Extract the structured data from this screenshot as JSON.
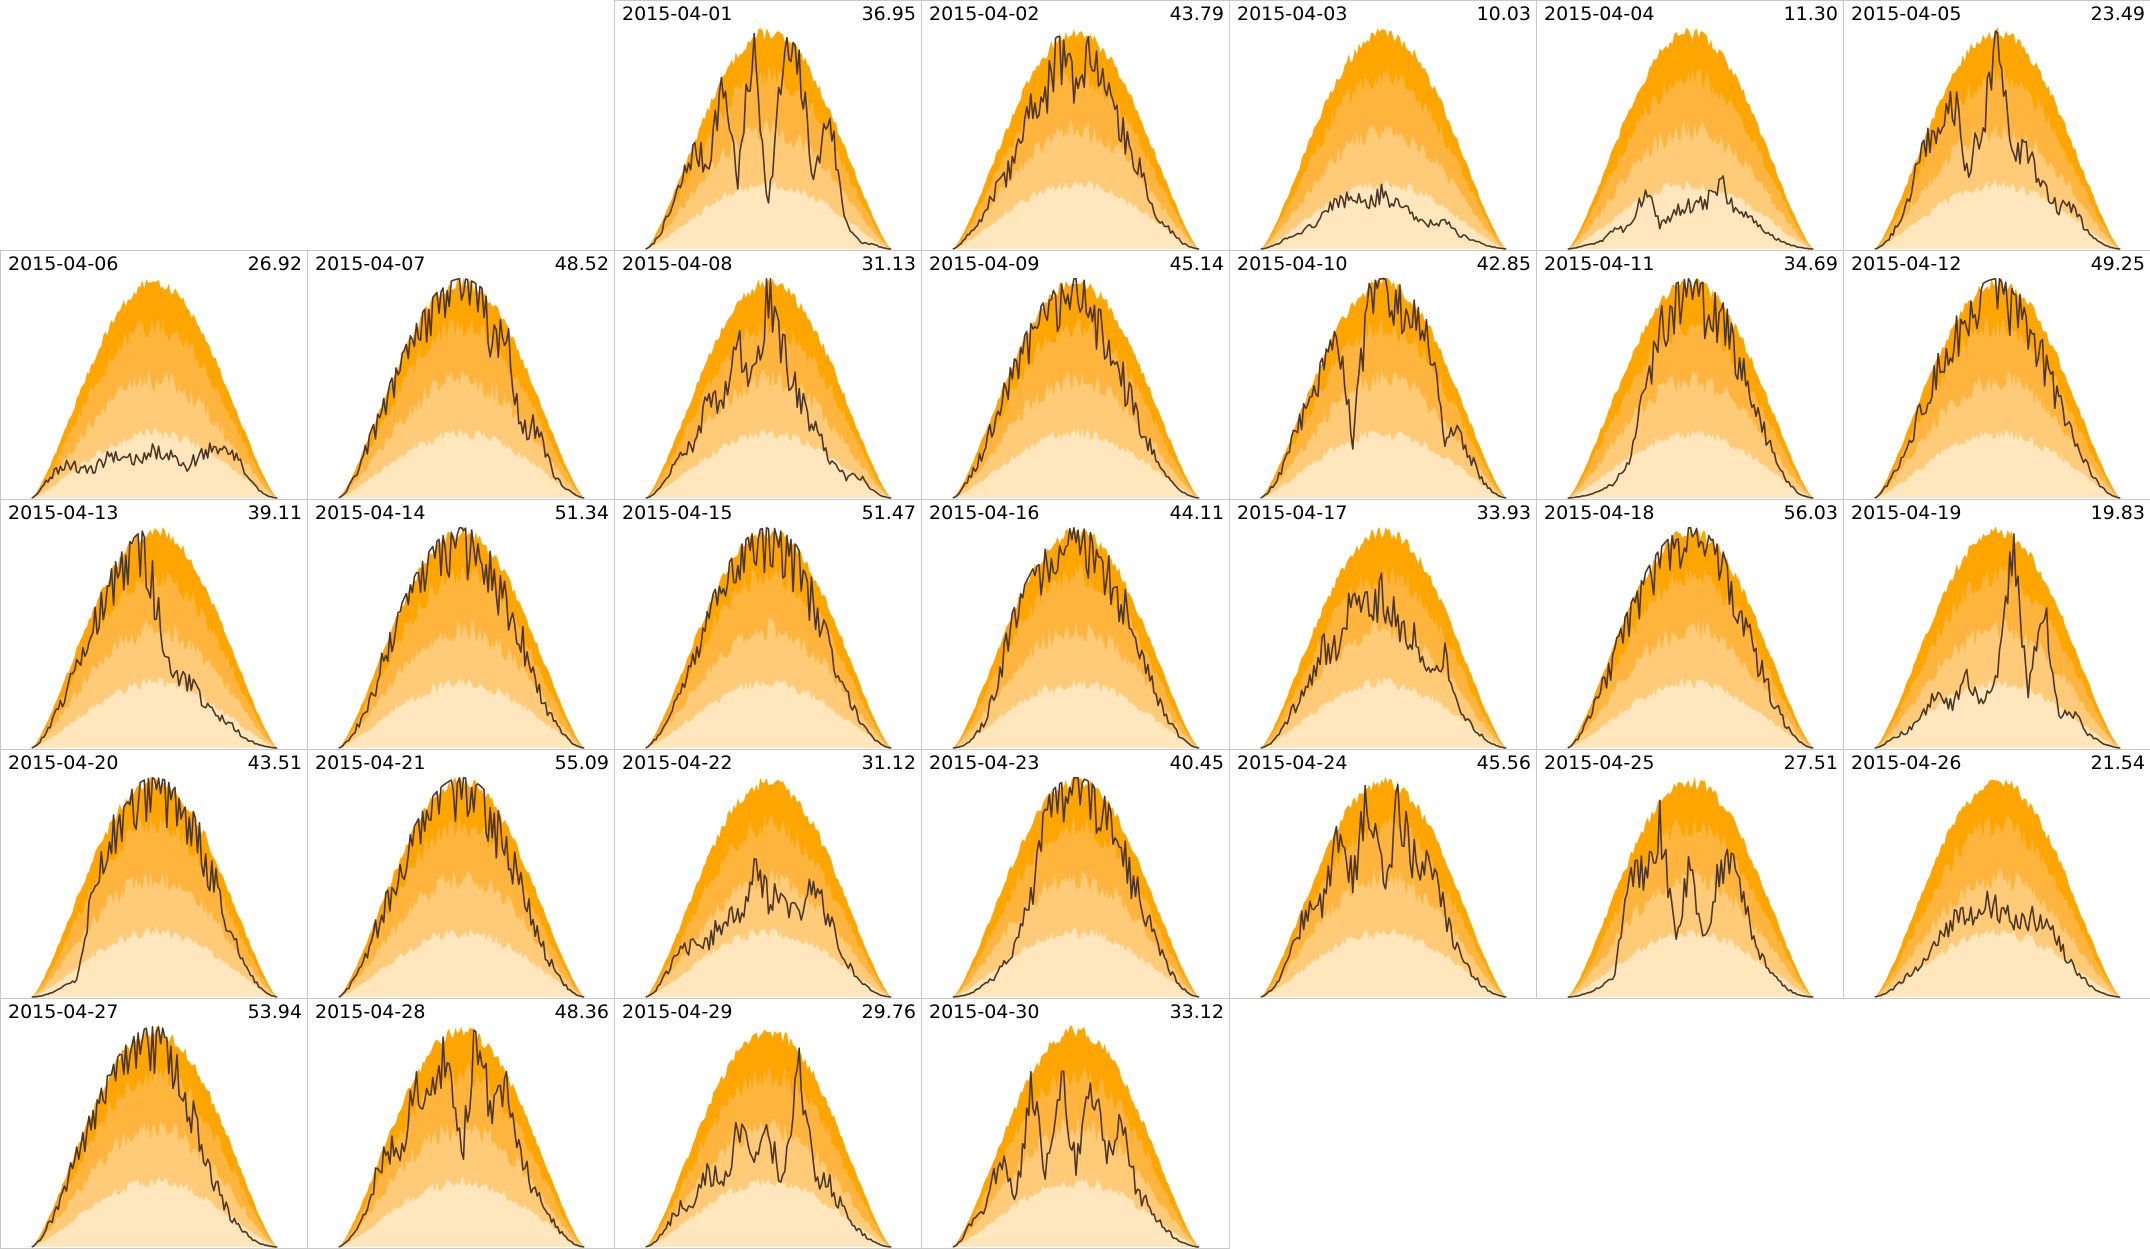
{
  "chart_data": {
    "type": "area",
    "layout": "calendar-grid",
    "columns": 7,
    "first_day_column": 2,
    "band_colors": [
      "#ffe6bd",
      "#ffcb78",
      "#ffb53d",
      "#ffa500"
    ],
    "line_color": "#4b3526",
    "days": [
      {
        "date": "2015-04-01",
        "total": "36.95",
        "profile": [
          0.4,
          0.7,
          0.85,
          0.95,
          0.6,
          1.0,
          0.35,
          0.98,
          0.2,
          0.9,
          0.95,
          0.4,
          1.0,
          0.3,
          0.1,
          0.15,
          0.05
        ]
      },
      {
        "date": "2015-04-02",
        "total": "43.79",
        "profile": [
          0.4,
          0.55,
          0.58,
          0.62,
          0.6,
          0.85,
          0.75,
          0.95,
          0.8,
          1.0,
          0.8,
          0.7,
          0.65,
          0.4,
          0.35,
          0.2,
          0.1
        ]
      },
      {
        "date": "2015-04-03",
        "total": "10.03",
        "profile": [
          0.12,
          0.18,
          0.22,
          0.2,
          0.24,
          0.28,
          0.25,
          0.22,
          0.26,
          0.2,
          0.18,
          0.15,
          0.2,
          0.14,
          0.12,
          0.1,
          0.08
        ]
      },
      {
        "date": "2015-04-04",
        "total": "11.30",
        "profile": [
          0.08,
          0.12,
          0.1,
          0.18,
          0.15,
          0.35,
          0.12,
          0.18,
          0.2,
          0.22,
          0.35,
          0.2,
          0.25,
          0.15,
          0.12,
          0.08,
          0.05
        ]
      },
      {
        "date": "2015-04-05",
        "total": "23.49",
        "profile": [
          0.25,
          0.45,
          0.7,
          0.98,
          0.9,
          0.95,
          0.4,
          0.6,
          0.9,
          0.45,
          0.5,
          0.35,
          0.3,
          0.4,
          0.25,
          0.15,
          0.08
        ]
      },
      {
        "date": "2015-04-06",
        "total": "26.92",
        "profile": [
          0.6,
          0.65,
          0.5,
          0.3,
          0.2,
          0.25,
          0.22,
          0.18,
          0.22,
          0.2,
          0.15,
          0.25,
          0.35,
          0.5,
          0.4,
          0.2,
          0.1
        ]
      },
      {
        "date": "2015-04-07",
        "total": "48.52",
        "profile": [
          0.6,
          0.8,
          0.9,
          0.95,
          0.97,
          1.0,
          0.98,
          1.0,
          0.96,
          0.92,
          0.85,
          0.9,
          0.5,
          0.7,
          0.4,
          0.3,
          0.15
        ]
      },
      {
        "date": "2015-04-08",
        "total": "31.13",
        "profile": [
          0.2,
          0.45,
          0.6,
          0.5,
          0.7,
          0.55,
          0.75,
          0.6,
          0.95,
          0.7,
          0.5,
          0.4,
          0.3,
          0.2,
          0.35,
          0.2,
          0.1
        ]
      },
      {
        "date": "2015-04-09",
        "total": "45.14",
        "profile": [
          0.5,
          0.7,
          0.8,
          0.9,
          0.95,
          0.97,
          0.98,
          0.97,
          0.95,
          0.9,
          0.75,
          0.7,
          0.6,
          0.45,
          0.3,
          0.2,
          0.1
        ]
      },
      {
        "date": "2015-04-10",
        "total": "42.85",
        "profile": [
          0.5,
          0.7,
          0.85,
          1.0,
          0.95,
          1.0,
          0.3,
          0.95,
          1.0,
          0.95,
          0.9,
          1.0,
          0.4,
          0.65,
          0.5,
          0.3,
          0.15
        ]
      },
      {
        "date": "2015-04-11",
        "total": "34.69",
        "profile": [
          0.05,
          0.08,
          0.1,
          0.15,
          0.3,
          0.6,
          0.85,
          0.95,
          1.0,
          0.9,
          0.95,
          0.85,
          0.8,
          0.6,
          0.4,
          0.2,
          0.1
        ]
      },
      {
        "date": "2015-04-12",
        "total": "49.25",
        "profile": [
          0.55,
          0.7,
          0.8,
          0.85,
          0.9,
          0.95,
          0.92,
          1.0,
          0.95,
          0.9,
          0.88,
          0.8,
          0.7,
          0.6,
          0.45,
          0.3,
          0.15
        ]
      },
      {
        "date": "2015-04-13",
        "total": "39.11",
        "profile": [
          0.45,
          0.65,
          0.8,
          0.85,
          0.9,
          0.95,
          0.98,
          1.0,
          0.7,
          0.4,
          0.35,
          0.3,
          0.25,
          0.22,
          0.15,
          0.1,
          0.06
        ]
      },
      {
        "date": "2015-04-14",
        "total": "51.34",
        "profile": [
          0.5,
          0.65,
          0.75,
          0.9,
          1.0,
          0.98,
          1.0,
          0.97,
          0.95,
          0.92,
          0.88,
          0.82,
          0.75,
          0.6,
          0.45,
          0.3,
          0.15
        ]
      },
      {
        "date": "2015-04-15",
        "total": "51.47",
        "profile": [
          0.55,
          0.7,
          0.82,
          0.9,
          0.95,
          0.98,
          1.0,
          0.99,
          0.97,
          0.94,
          0.9,
          0.82,
          0.72,
          0.58,
          0.42,
          0.28,
          0.14
        ]
      },
      {
        "date": "2015-04-16",
        "total": "44.11",
        "profile": [
          0.1,
          0.2,
          0.4,
          0.75,
          0.95,
          1.0,
          0.95,
          1.0,
          0.98,
          0.95,
          0.9,
          0.85,
          0.75,
          0.6,
          0.45,
          0.3,
          0.15
        ]
      },
      {
        "date": "2015-04-17",
        "total": "33.93",
        "profile": [
          0.2,
          0.4,
          0.6,
          0.55,
          0.7,
          0.6,
          0.75,
          0.65,
          0.7,
          0.6,
          0.55,
          0.5,
          0.65,
          0.4,
          0.3,
          0.2,
          0.1
        ]
      },
      {
        "date": "2015-04-18",
        "total": "56.03",
        "profile": [
          0.55,
          0.7,
          0.82,
          0.9,
          0.95,
          0.98,
          1.0,
          1.0,
          0.98,
          0.95,
          0.9,
          0.84,
          0.75,
          0.62,
          0.46,
          0.3,
          0.15
        ]
      },
      {
        "date": "2015-04-19",
        "total": "19.83",
        "profile": [
          0.2,
          0.35,
          0.25,
          0.3,
          0.4,
          0.25,
          0.35,
          0.2,
          0.3,
          0.98,
          0.3,
          0.9,
          0.25,
          0.35,
          0.2,
          0.15,
          0.08
        ]
      },
      {
        "date": "2015-04-20",
        "total": "43.51",
        "profile": [
          0.05,
          0.1,
          0.15,
          0.2,
          0.8,
          0.9,
          0.95,
          0.98,
          1.0,
          0.96,
          0.92,
          0.88,
          0.8,
          0.65,
          0.45,
          0.3,
          0.15
        ]
      },
      {
        "date": "2015-04-21",
        "total": "55.09",
        "profile": [
          0.55,
          0.7,
          0.82,
          0.9,
          0.95,
          0.98,
          1.0,
          1.0,
          0.98,
          0.95,
          0.9,
          0.84,
          0.75,
          0.62,
          0.46,
          0.3,
          0.15
        ]
      },
      {
        "date": "2015-04-22",
        "total": "31.12",
        "profile": [
          0.3,
          0.55,
          0.75,
          0.5,
          0.4,
          0.45,
          0.4,
          0.6,
          0.45,
          0.5,
          0.4,
          0.65,
          0.55,
          0.4,
          0.25,
          0.15,
          0.08
        ]
      },
      {
        "date": "2015-04-23",
        "total": "40.45",
        "profile": [
          0.08,
          0.12,
          0.18,
          0.25,
          0.35,
          0.55,
          0.95,
          1.0,
          0.98,
          0.95,
          0.9,
          0.85,
          0.75,
          0.62,
          0.46,
          0.3,
          0.15
        ]
      },
      {
        "date": "2015-04-24",
        "total": "45.56",
        "profile": [
          0.3,
          0.55,
          0.8,
          0.9,
          0.7,
          0.95,
          0.6,
          1.0,
          0.5,
          0.9,
          0.7,
          0.85,
          0.6,
          0.4,
          0.3,
          0.2,
          0.1
        ]
      },
      {
        "date": "2015-04-25",
        "total": "27.51",
        "profile": [
          0.05,
          0.1,
          0.15,
          0.2,
          0.98,
          0.7,
          0.9,
          0.3,
          0.6,
          0.25,
          0.7,
          0.8,
          0.45,
          0.3,
          0.2,
          0.1,
          0.05
        ]
      },
      {
        "date": "2015-04-26",
        "total": "21.54",
        "profile": [
          0.2,
          0.25,
          0.3,
          0.35,
          0.4,
          0.45,
          0.4,
          0.45,
          0.4,
          0.35,
          0.4,
          0.45,
          0.38,
          0.3,
          0.2,
          0.12,
          0.06
        ]
      },
      {
        "date": "2015-04-27",
        "total": "53.94",
        "profile": [
          0.6,
          0.75,
          0.85,
          0.95,
          1.0,
          0.98,
          1.0,
          0.99,
          0.97,
          0.9,
          0.75,
          0.65,
          0.45,
          0.3,
          0.2,
          0.12,
          0.06
        ]
      },
      {
        "date": "2015-04-28",
        "total": "48.36",
        "profile": [
          0.4,
          0.6,
          0.8,
          1.0,
          0.6,
          1.0,
          0.7,
          0.95,
          0.4,
          1.0,
          0.7,
          0.9,
          0.6,
          0.5,
          0.4,
          0.25,
          0.1
        ]
      },
      {
        "date": "2015-04-29",
        "total": "29.76",
        "profile": [
          0.3,
          0.45,
          0.6,
          0.4,
          0.55,
          0.35,
          0.6,
          0.4,
          0.5,
          0.3,
          0.95,
          0.4,
          0.45,
          0.35,
          0.25,
          0.15,
          0.08
        ]
      },
      {
        "date": "2015-04-30",
        "total": "33.12",
        "profile": [
          0.4,
          0.8,
          0.5,
          0.9,
          0.3,
          0.95,
          0.4,
          0.85,
          0.35,
          0.8,
          0.45,
          0.7,
          0.4,
          0.35,
          0.25,
          0.15,
          0.08
        ]
      }
    ]
  }
}
